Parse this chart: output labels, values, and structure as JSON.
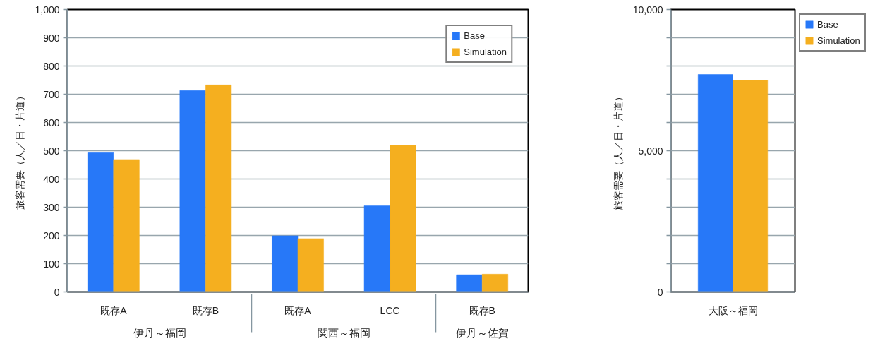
{
  "chart_data": [
    {
      "type": "bar",
      "ylabel": "旅客需要（人／日・片道）",
      "categories": [
        [
          "伊丹～福岡",
          "既存A"
        ],
        [
          null,
          "既存B"
        ],
        [
          "関西～福岡",
          "既存A"
        ],
        [
          null,
          "LCC"
        ],
        [
          "伊丹～佐賀",
          "既存B"
        ]
      ],
      "series": [
        {
          "name": "Base",
          "color": "#2778f8",
          "values": [
            493,
            713,
            199,
            305,
            61
          ]
        },
        {
          "name": "Simulation",
          "color": "#f5af1f",
          "values": [
            469,
            733,
            189,
            520,
            63
          ]
        }
      ],
      "ylim": [
        0,
        1000
      ],
      "yticks": [
        0,
        100,
        200,
        300,
        400,
        500,
        600,
        700,
        800,
        900,
        {
          "value": 1000,
          "label": "1,000"
        }
      ],
      "grid": "y",
      "legend": "top right"
    },
    {
      "type": "bar",
      "ylabel": "旅客需要（人／日・片道）",
      "categories": [
        "大阪～福岡"
      ],
      "series": [
        {
          "name": "Base",
          "color": "#2778f8",
          "values": [
            7700
          ]
        },
        {
          "name": "Simulation",
          "color": "#f5af1f",
          "values": [
            7500
          ]
        }
      ],
      "ylim": [
        0,
        10000
      ],
      "yticks": [
        0,
        {
          "value": 1000,
          "label": null
        },
        {
          "value": 2000,
          "label": null
        },
        {
          "value": 3000,
          "label": null
        },
        {
          "value": 4000,
          "label": null
        },
        {
          "value": 5000,
          "label": "5,000"
        },
        {
          "value": 6000,
          "label": null
        },
        {
          "value": 7000,
          "label": null
        },
        {
          "value": 8000,
          "label": null
        },
        {
          "value": 9000,
          "label": null
        },
        {
          "value": 10000,
          "label": "10,000"
        }
      ],
      "grid": "y",
      "legend": "right"
    }
  ]
}
